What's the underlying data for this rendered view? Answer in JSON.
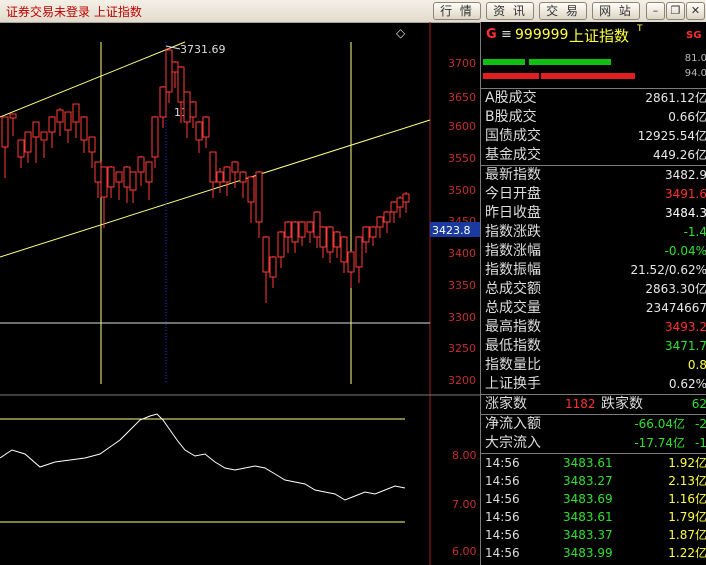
{
  "top": {
    "status_text": "证券交易未登录 上证指数",
    "buttons": [
      "行 情",
      "资 讯",
      "交 易",
      "网 站"
    ],
    "window_buttons": [
      "–",
      "❐",
      "✕"
    ]
  },
  "chart": {
    "price_axis": [
      "3700",
      "3650",
      "3600",
      "3550",
      "3500",
      "3450",
      "3400",
      "3350",
      "3300",
      "3250",
      "3200"
    ],
    "current_price_tag": "3423.8",
    "high_annotation": "3731.69",
    "high_annotation_mark": "11",
    "indicator_axis": [
      "8.00",
      "7.00",
      "6.00"
    ],
    "diamond_icon": "◇"
  },
  "panel": {
    "header": {
      "g": "G",
      "eq": "≡",
      "code": "999999",
      "name": "上证指数",
      "t": "T",
      "sg": "SG"
    },
    "bars": [
      {
        "value": "81.0",
        "color": "#10c010"
      },
      {
        "value": "94.0",
        "color": "#e02020"
      }
    ],
    "rows1": [
      {
        "label": "A股成交",
        "value": "2861.12亿",
        "color": "#e8e8e8"
      },
      {
        "label": "B股成交",
        "value": "0.66亿",
        "color": "#e8e8e8"
      },
      {
        "label": "国债成交",
        "value": "12925.54亿",
        "color": "#e8e8e8"
      },
      {
        "label": "基金成交",
        "value": "449.26亿",
        "color": "#e8e8e8"
      }
    ],
    "rows2": [
      {
        "label": "最新指数",
        "value": "3482.9",
        "color": "#e8e8e8"
      },
      {
        "label": "今日开盘",
        "value": "3491.6",
        "color": "#ff3030"
      },
      {
        "label": "昨日收盘",
        "value": "3484.3",
        "color": "#ffffff"
      },
      {
        "label": "指数涨跌",
        "value": "-1.4",
        "color": "#30e030"
      },
      {
        "label": "指数涨幅",
        "value": "-0.04%",
        "color": "#30e030"
      },
      {
        "label": "指数振幅",
        "value": "21.52/0.62%",
        "color": "#e8e8e8"
      },
      {
        "label": "总成交额",
        "value": "2863.30亿",
        "color": "#e8e8e8"
      },
      {
        "label": "总成交量",
        "value": "23474667",
        "color": "#e8e8e8"
      },
      {
        "label": "最高指数",
        "value": "3493.2",
        "color": "#ff3030"
      },
      {
        "label": "最低指数",
        "value": "3471.7",
        "color": "#30e030"
      },
      {
        "label": "指数量比",
        "value": "0.8",
        "color": "#ffff40"
      },
      {
        "label": "上证换手",
        "value": "0.62%",
        "color": "#e8e8e8"
      }
    ],
    "updown": {
      "up_label": "涨家数",
      "up_value": "1182",
      "down_label": "跌家数",
      "down_value": "62"
    },
    "flows": [
      {
        "label": "净流入额",
        "value": "-66.04亿",
        "extra": "-2",
        "color": "#30e030"
      },
      {
        "label": "大宗流入",
        "value": "-17.74亿",
        "extra": "-1",
        "color": "#30e030"
      }
    ],
    "ticks": [
      {
        "time": "14:56",
        "price": "3483.61",
        "vol": "1.92亿",
        "color": "#30e030"
      },
      {
        "time": "14:56",
        "price": "3483.27",
        "vol": "2.13亿",
        "color": "#30e030"
      },
      {
        "time": "14:56",
        "price": "3483.69",
        "vol": "1.16亿",
        "color": "#30e030"
      },
      {
        "time": "14:56",
        "price": "3483.61",
        "vol": "1.79亿",
        "color": "#30e030"
      },
      {
        "time": "14:56",
        "price": "3483.37",
        "vol": "1.87亿",
        "color": "#30e030"
      },
      {
        "time": "14:56",
        "price": "3483.99",
        "vol": "1.22亿",
        "color": "#30e030"
      }
    ]
  }
}
